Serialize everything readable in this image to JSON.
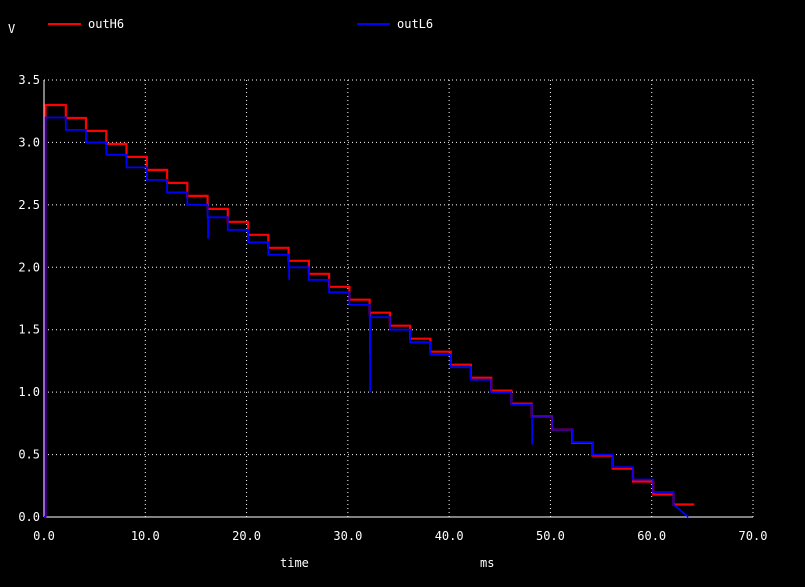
{
  "chart_data": {
    "type": "line",
    "ylabel": "V",
    "xlabel": "time",
    "x_unit": "ms",
    "xlim": [
      0,
      70
    ],
    "ylim": [
      0,
      3.5
    ],
    "grid": true,
    "legend_position": "top",
    "x_ticks": [
      0,
      10,
      20,
      30,
      40,
      50,
      60,
      70
    ],
    "x_tick_labels": [
      "0.0",
      "10.0",
      "20.0",
      "30.0",
      "40.0",
      "50.0",
      "60.0",
      "70.0"
    ],
    "y_ticks": [
      0,
      0.5,
      1,
      1.5,
      2,
      2.5,
      3,
      3.5
    ],
    "y_tick_labels": [
      "0.0",
      "0.5",
      "1.0",
      "1.5",
      "2.0",
      "2.5",
      "3.0",
      "3.5"
    ],
    "series": [
      {
        "name": "outH6",
        "color": "#ff0000",
        "step": {
          "x_start": 0.15,
          "x_end": 64.2,
          "period": 2.0,
          "y_first": 3.3,
          "y_drop": 0.104,
          "y_last": 0.1
        },
        "glitches": [
          {
            "x": 32.2,
            "y": 1.3
          }
        ]
      },
      {
        "name": "outL6",
        "color": "#0000ff",
        "step": {
          "x_start": 0.15,
          "x_end": 63.6,
          "period": 2.0,
          "y_first": 3.2,
          "y_drop": 0.1,
          "y_last": 0.0
        },
        "glitches": [
          {
            "x": 16.2,
            "y": 2.23
          },
          {
            "x": 24.2,
            "y": 1.9
          },
          {
            "x": 32.2,
            "y": 1.0
          },
          {
            "x": 48.2,
            "y": 0.58
          }
        ]
      }
    ]
  }
}
